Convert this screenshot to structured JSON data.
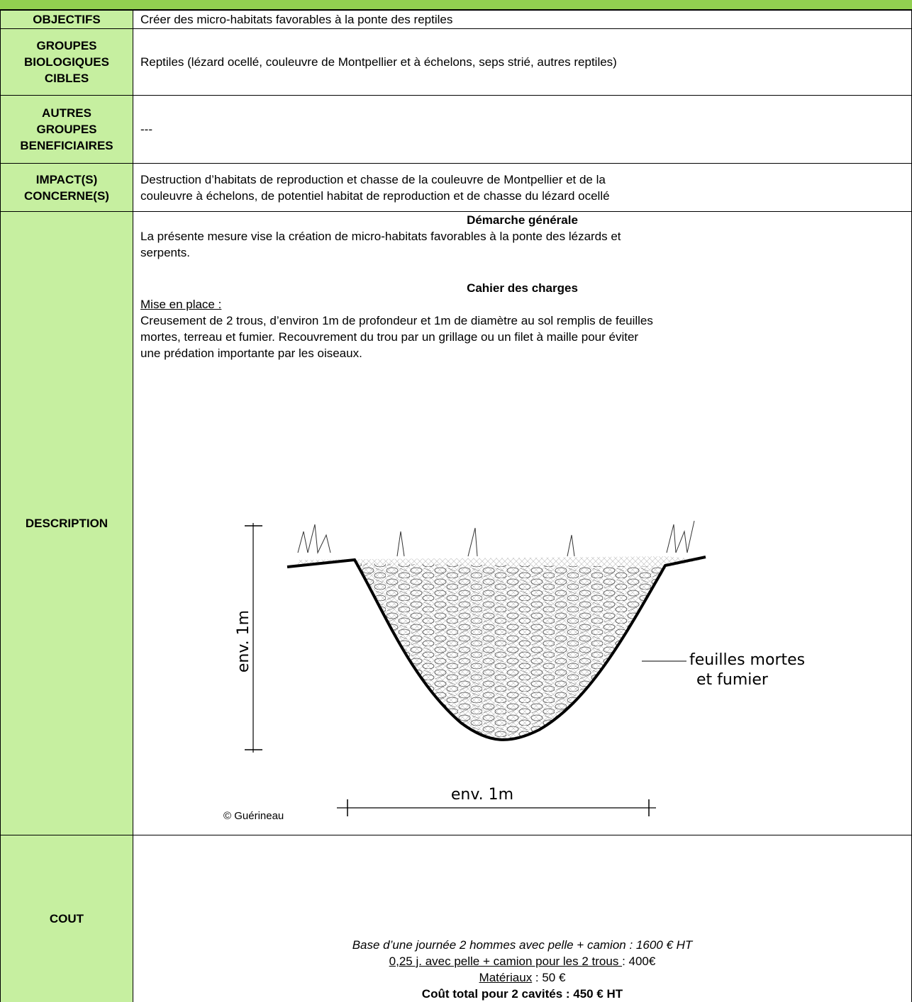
{
  "rows": [
    {
      "label": [
        "OBJECTIFS"
      ],
      "text": [
        "Créer des micro-habitats favorables à la ponte des reptiles"
      ]
    },
    {
      "label": [
        "GROUPES",
        "BIOLOGIQUES",
        "CIBLES"
      ],
      "text": [
        "Reptiles (lézard ocellé, couleuvre de Montpellier et à échelons, seps strié, autres reptiles)"
      ]
    },
    {
      "label": [
        "AUTRES",
        "GROUPES",
        "BENEFICIAIRES"
      ],
      "text": [
        "---"
      ]
    },
    {
      "label": [
        "IMPACT(S)",
        "CONCERNE(S)"
      ],
      "text": [
        "Destruction d’habitats de reproduction et chasse de la couleuvre de Montpellier et de la",
        "couleuvre à échelons, de potentiel habitat de reproduction et de chasse du lézard ocellé"
      ]
    }
  ],
  "description": {
    "label": "DESCRIPTION",
    "heading1": "Démarche générale",
    "intro": [
      "La présente mesure vise la création de micro-habitats favorables à la ponte des lézards et",
      "serpents."
    ],
    "heading2": "Cahier des charges",
    "subheading": "Mise en place :",
    "body": [
      "Creusement de 2 trous, d’environ 1m de profondeur et 1m de diamètre au sol remplis de feuilles",
      "mortes, terreau et fumier. Recouvrement du trou par un grillage ou un filet à maille pour éviter",
      "une prédation importante par les oiseaux."
    ],
    "figure": {
      "depth_label": "env. 1m",
      "width_label": "env. 1m",
      "fill_label": [
        "feuilles mortes",
        "et fumier"
      ],
      "credit": "© Guérineau"
    }
  },
  "cost": {
    "label": "COUT",
    "line1": "Base d’une journée 2 hommes avec pelle + camion : 1600 € HT",
    "line2": {
      "underlined": "0,25 j. avec pelle + camion pour les 2 trous ",
      "rest": ": 400€"
    },
    "line3": {
      "underlined": "Matériaux",
      "rest": " : 50 €"
    },
    "line4": "Coût total pour 2 cavités : 450 € HT"
  }
}
